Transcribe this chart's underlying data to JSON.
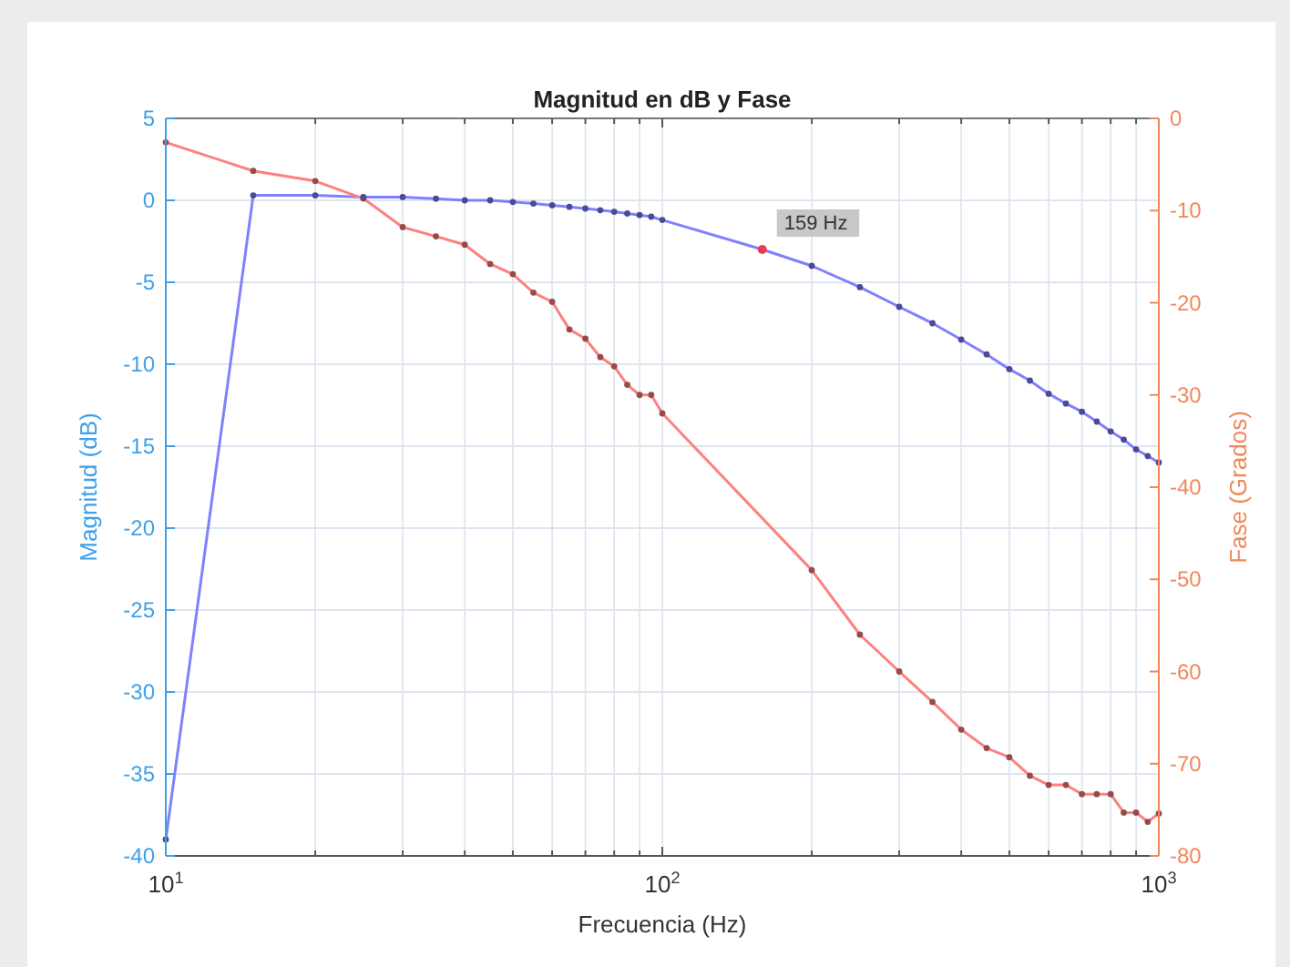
{
  "chart_data": {
    "type": "line",
    "title": "Magnitud en dB y Fase",
    "xlabel": "Frecuencia (Hz)",
    "ylabel": "Magnitud (dB)",
    "y2label": "Fase (Grados)",
    "log": "x",
    "grid": true,
    "marker": "circle",
    "line_style": "solid",
    "xlim": [
      10,
      1000
    ],
    "xticks": [
      {
        "value": 10,
        "label": "10$^{1}$"
      },
      {
        "value": 20,
        "label": null
      },
      {
        "value": 30,
        "label": null
      },
      {
        "value": 40,
        "label": null
      },
      {
        "value": 50,
        "label": null
      },
      {
        "value": 60,
        "label": null
      },
      {
        "value": 70,
        "label": null
      },
      {
        "value": 80,
        "label": null
      },
      {
        "value": 90,
        "label": null
      },
      {
        "value": 100,
        "label": "10$^{2}$"
      },
      {
        "value": 200,
        "label": null
      },
      {
        "value": 300,
        "label": null
      },
      {
        "value": 400,
        "label": null
      },
      {
        "value": 500,
        "label": null
      },
      {
        "value": 600,
        "label": null
      },
      {
        "value": 700,
        "label": null
      },
      {
        "value": 800,
        "label": null
      },
      {
        "value": 900,
        "label": null
      },
      {
        "value": 1000,
        "label": "10$^{3}$"
      }
    ],
    "ylim": [
      -40,
      5
    ],
    "yticks": [
      -40,
      -35,
      -30,
      -25,
      -20,
      -15,
      -10,
      -5,
      0,
      5
    ],
    "y2lim": [
      -80,
      0
    ],
    "y2ticks": [
      -80,
      -70,
      -60,
      -50,
      -40,
      -30,
      -20,
      -10,
      0
    ],
    "series": [
      {
        "color": "#8080ff",
        "x": [
          10,
          15,
          20,
          25,
          30,
          35,
          40,
          45,
          50,
          55,
          60,
          65,
          70,
          75,
          80,
          85,
          90,
          95,
          100,
          159,
          200,
          250,
          300,
          350,
          400,
          450,
          500,
          550,
          600,
          650,
          700,
          750,
          800,
          850,
          900,
          950,
          1000
        ],
        "values": [
          -39,
          0.3,
          0.3,
          0.2,
          0.2,
          0.1,
          0,
          0,
          -0.1,
          -0.2,
          -0.3,
          -0.4,
          -0.5,
          -0.6,
          -0.7,
          -0.8,
          -0.9,
          -1,
          -1.2,
          -3,
          -4,
          -5.3,
          -6.5,
          -7.5,
          -8.5,
          -9.4,
          -10.3,
          -11,
          -11.8,
          -12.4,
          -12.9,
          -13.5,
          -14.1,
          -14.6,
          -15.2,
          -15.6,
          -16
        ]
      },
      {
        "color": "#ff8080",
        "axis": "y2",
        "x": [
          10,
          15,
          20,
          25,
          30,
          35,
          40,
          45,
          50,
          55,
          60,
          65,
          70,
          75,
          80,
          85,
          90,
          95,
          100,
          200,
          250,
          300,
          350,
          400,
          450,
          500,
          550,
          600,
          650,
          700,
          750,
          800,
          850,
          900,
          950,
          1000
        ],
        "values": [
          -2.6,
          -5.7,
          -6.8,
          -8.7,
          -11.8,
          -12.8,
          -13.7,
          -15.8,
          -16.9,
          -18.9,
          -19.9,
          -22.9,
          -23.9,
          -25.9,
          -26.9,
          -28.9,
          -30,
          -30,
          -32,
          -49,
          -56,
          -60,
          -63.3,
          -66.3,
          -68.3,
          -69.3,
          -71.3,
          -72.3,
          -72.3,
          -73.3,
          -73.3,
          -73.3,
          -75.3,
          -75.3,
          -76.3,
          -75.4
        ]
      }
    ],
    "annotations": [
      {
        "text": "159 Hz",
        "x": 159,
        "y": -3
      }
    ]
  }
}
